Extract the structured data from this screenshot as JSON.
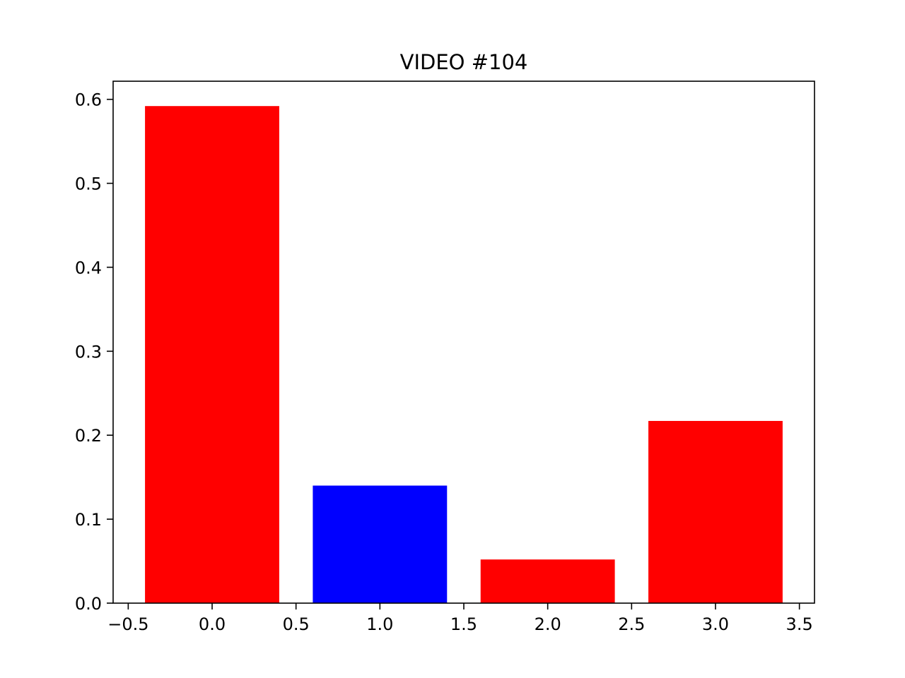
{
  "chart_data": {
    "type": "bar",
    "title": "VIDEO #104",
    "xlabel": "",
    "ylabel": "",
    "x": [
      0,
      1,
      2,
      3
    ],
    "values": [
      0.592,
      0.14,
      0.052,
      0.217
    ],
    "bar_colors": [
      "#ff0000",
      "#0000ff",
      "#ff0000",
      "#ff0000"
    ],
    "bar_width": 0.8,
    "xlim": [
      -0.59,
      3.59
    ],
    "ylim": [
      0,
      0.6216
    ],
    "xticks": [
      -0.5,
      0.0,
      0.5,
      1.0,
      1.5,
      2.0,
      2.5,
      3.0,
      3.5
    ],
    "xtick_labels": [
      "−0.5",
      "0.0",
      "0.5",
      "1.0",
      "1.5",
      "2.0",
      "2.5",
      "3.0",
      "3.5"
    ],
    "yticks": [
      0.0,
      0.1,
      0.2,
      0.3,
      0.4,
      0.5,
      0.6
    ],
    "ytick_labels": [
      "0.0",
      "0.1",
      "0.2",
      "0.3",
      "0.4",
      "0.5",
      "0.6"
    ],
    "grid": false,
    "legend": "none"
  }
}
